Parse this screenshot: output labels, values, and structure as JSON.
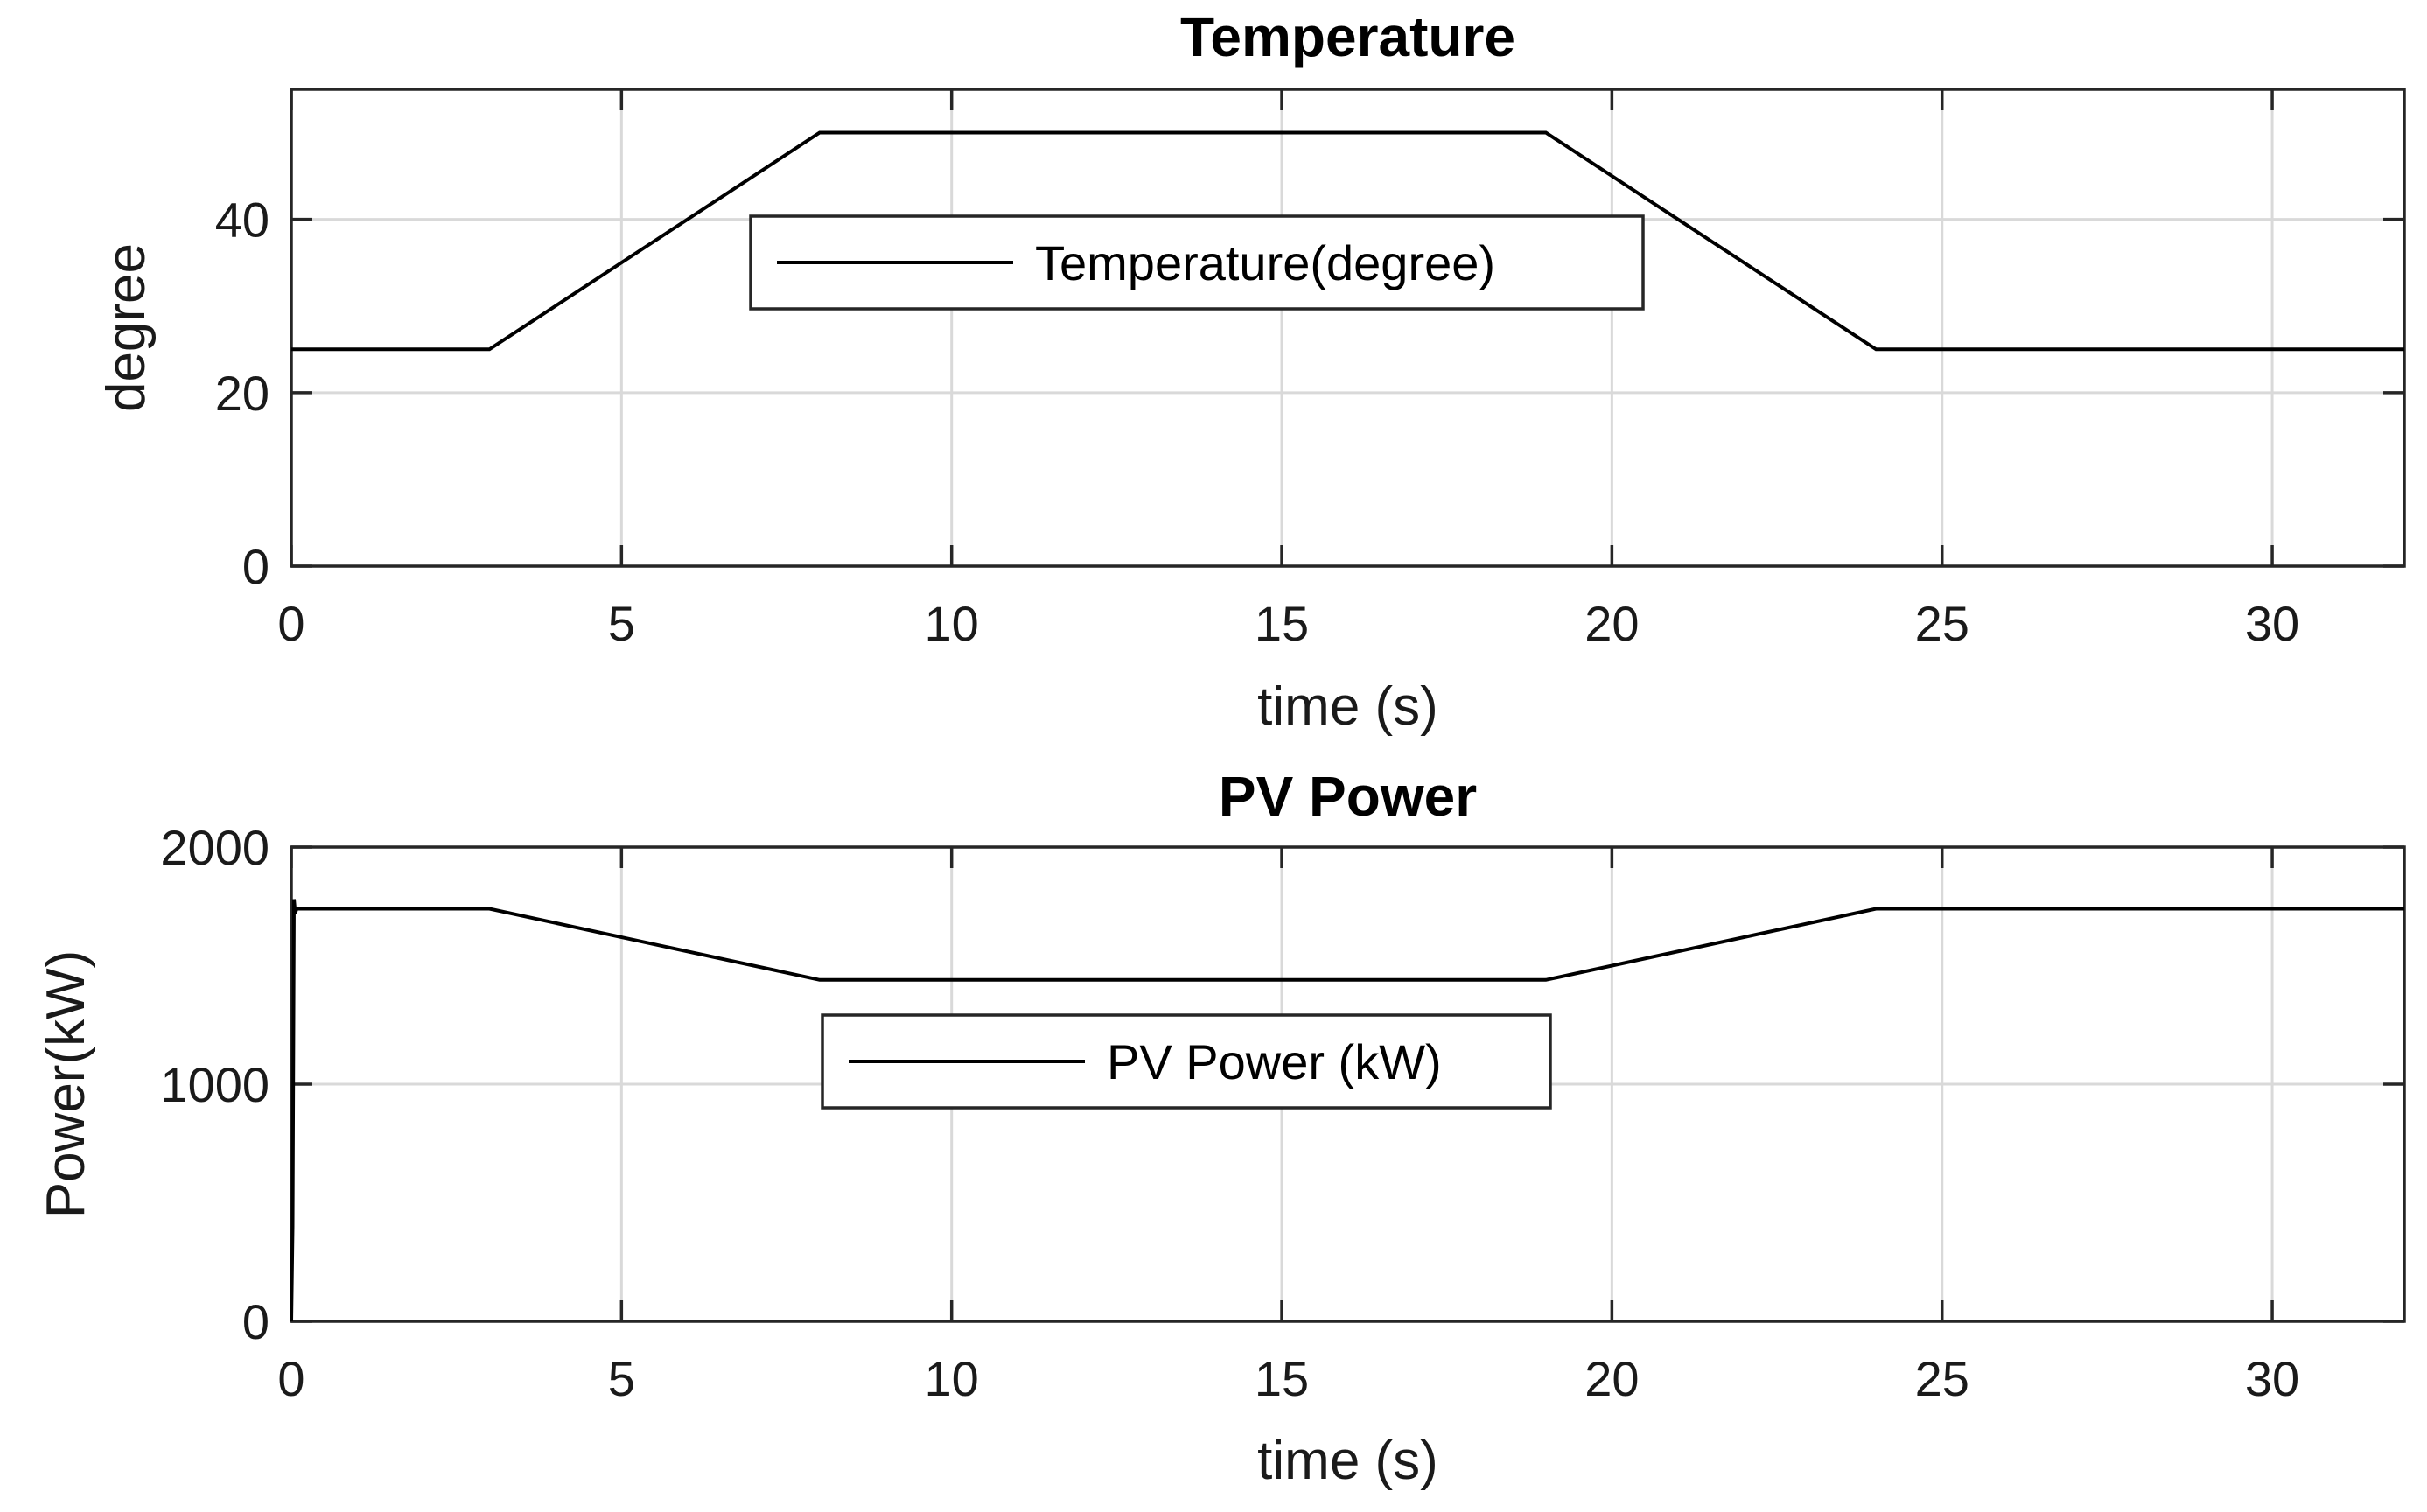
{
  "chart_data": [
    {
      "type": "line",
      "title": "Temperature",
      "xlabel": "time (s)",
      "ylabel": "degree",
      "xlim": [
        0,
        32
      ],
      "ylim": [
        0,
        55
      ],
      "xticks": [
        0,
        5,
        10,
        15,
        20,
        25,
        30
      ],
      "yticks": [
        0,
        20,
        40
      ],
      "grid": true,
      "legend_position": "upper-center",
      "series": [
        {
          "name": "Temperature(degree)",
          "color": "#000000",
          "x": [
            0,
            3,
            8,
            19,
            24,
            32
          ],
          "y": [
            25,
            25,
            50,
            50,
            25,
            25
          ]
        }
      ]
    },
    {
      "type": "line",
      "title": "PV Power",
      "xlabel": "time (s)",
      "ylabel": "Power(kW)",
      "xlim": [
        0,
        32
      ],
      "ylim": [
        0,
        2000
      ],
      "xticks": [
        0,
        5,
        10,
        15,
        20,
        25,
        30
      ],
      "yticks": [
        0,
        1000,
        2000
      ],
      "grid": true,
      "legend_position": "center",
      "series": [
        {
          "name": "PV Power (kW)",
          "color": "#000000",
          "x": [
            0,
            0.02,
            0.04,
            0.06,
            0.08,
            3,
            8,
            19,
            24,
            32
          ],
          "y": [
            0,
            400,
            1780,
            1720,
            1740,
            1740,
            1440,
            1440,
            1740,
            1740
          ]
        }
      ]
    }
  ]
}
